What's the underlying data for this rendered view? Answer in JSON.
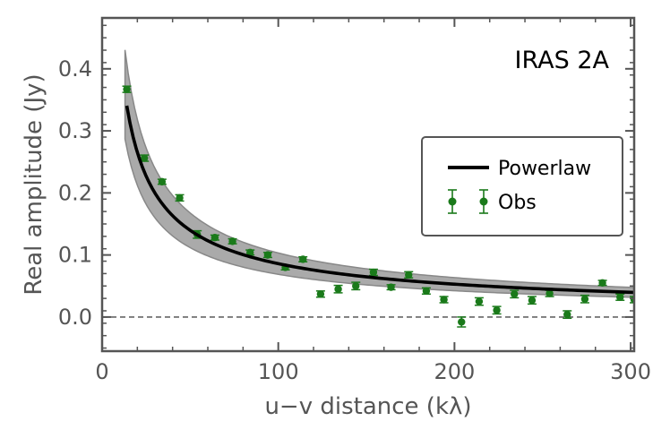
{
  "chart_data": {
    "type": "scatter",
    "title": "",
    "annotation": "IRAS 2A",
    "xlabel": "u−v distance (kλ)",
    "ylabel": "Real amplitude (Jy)",
    "xlim": [
      0,
      302
    ],
    "ylim": [
      -0.055,
      0.482
    ],
    "xticks": [
      0,
      100,
      200,
      300
    ],
    "xtick_labels": [
      "0",
      "100",
      "200",
      "300"
    ],
    "yticks": [
      0.0,
      0.1,
      0.2,
      0.3,
      0.4
    ],
    "ytick_labels": [
      "0.0",
      "0.1",
      "0.2",
      "0.3",
      "0.4"
    ],
    "reference_line": {
      "y": 0.0,
      "style": "dashed",
      "color": "#666666"
    },
    "colors": {
      "obs": "#1a7a1a",
      "model": "#000000",
      "band_fill": "#aaaaaa",
      "band_edge": "#888888"
    },
    "legend": {
      "position": "center-right",
      "entries": [
        {
          "label": "Powerlaw",
          "kind": "line"
        },
        {
          "label": "Obs",
          "kind": "errorbar"
        }
      ]
    },
    "series": [
      {
        "name": "Obs",
        "kind": "errorbar",
        "x": [
          14,
          24,
          34,
          44,
          54,
          64,
          74,
          84,
          94,
          104,
          114,
          124,
          134,
          144,
          154,
          164,
          174,
          184,
          194,
          204,
          214,
          224,
          234,
          244,
          254,
          264,
          274,
          284,
          294,
          302
        ],
        "y": [
          0.367,
          0.256,
          0.218,
          0.192,
          0.133,
          0.128,
          0.122,
          0.104,
          0.1,
          0.08,
          0.093,
          0.037,
          0.045,
          0.05,
          0.072,
          0.048,
          0.068,
          0.042,
          0.028,
          -0.008,
          0.025,
          0.011,
          0.037,
          0.027,
          0.038,
          0.004,
          0.029,
          0.055,
          0.032,
          0.028
        ],
        "yerr": [
          0.005,
          0.005,
          0.004,
          0.005,
          0.006,
          0.004,
          0.004,
          0.004,
          0.004,
          0.004,
          0.004,
          0.005,
          0.006,
          0.006,
          0.005,
          0.004,
          0.005,
          0.005,
          0.005,
          0.008,
          0.006,
          0.006,
          0.006,
          0.006,
          0.005,
          0.006,
          0.006,
          0.004,
          0.005,
          0.005
        ]
      },
      {
        "name": "Powerlaw",
        "kind": "line",
        "x_range": [
          14,
          302
        ],
        "model": {
          "form": "A * x^(-p)",
          "A": 2.16,
          "p": 0.7
        },
        "band": {
          "x_range": [
            13,
            302
          ],
          "lower_factor": 0.8,
          "upper_factor": 1.2
        }
      }
    ]
  }
}
